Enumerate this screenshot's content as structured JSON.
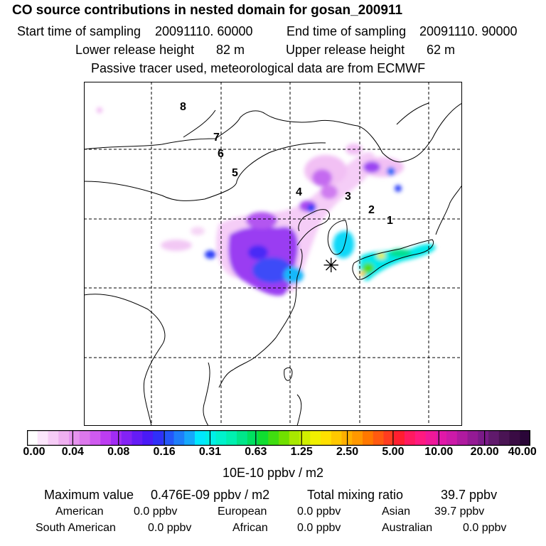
{
  "header": {
    "title": "CO  source contributions in nested domain for gosan_200911",
    "start_label": "Start time of sampling",
    "start_value": "20091110. 60000",
    "end_label": "End time of sampling",
    "end_value": "20091110. 90000",
    "lower_label": "Lower release height",
    "lower_value": "82 m",
    "upper_label": "Upper release height",
    "upper_value": "62 m",
    "subtitle": "Passive tracer used, meteorological data are from ECMWF"
  },
  "map": {
    "trajectory_labels": [
      "1",
      "2",
      "3",
      "4",
      "5",
      "6",
      "7",
      "8"
    ],
    "receptor_symbol": "✳",
    "grid_lines": "dashed"
  },
  "colorbar": {
    "ticks": [
      "0.00",
      "0.04",
      "0.08",
      "0.16",
      "0.31",
      "0.63",
      "1.25",
      "2.50",
      "5.00",
      "10.00",
      "20.00",
      "40.00"
    ],
    "colors": [
      "#ffffff",
      "#fbe6fb",
      "#f6ccf6",
      "#efb0f0",
      "#e693ee",
      "#dc78ec",
      "#cf5aef",
      "#bd3df2",
      "#a12cf4",
      "#8322f5",
      "#651cf6",
      "#4a1af7",
      "#2f30f8",
      "#2456f9",
      "#1e7efa",
      "#16a8fb",
      "#00e8ff",
      "#00f0e8",
      "#00f2cc",
      "#00f0b0",
      "#00e68a",
      "#00e060",
      "#10dd30",
      "#40dd10",
      "#70e000",
      "#a8e800",
      "#d0f000",
      "#f0f000",
      "#ffe000",
      "#ffc800",
      "#ffb000",
      "#ff9800",
      "#ff7800",
      "#ff5a10",
      "#ff3c20",
      "#ff1e30",
      "#ff1a60",
      "#ff1a80",
      "#f01898",
      "#e018a8",
      "#cc1aa8",
      "#b01aa0",
      "#941a94",
      "#7a1a88",
      "#601a6c",
      "#4a1454",
      "#3a0c44",
      "#2a0638"
    ],
    "units": "10E-10 ppbv / m2"
  },
  "summary": {
    "max_label": "Maximum value",
    "max_value": "0.476E-09 ppbv / m2",
    "total_label": "Total mixing ratio",
    "total_value": "39.7 ppbv",
    "regions": [
      {
        "name": "American",
        "value": "0.0 ppbv"
      },
      {
        "name": "European",
        "value": "0.0 ppbv"
      },
      {
        "name": "Asian",
        "value": "39.7 ppbv"
      },
      {
        "name": "South American",
        "value": "0.0 ppbv"
      },
      {
        "name": "African",
        "value": "0.0 ppbv"
      },
      {
        "name": "Australian",
        "value": "0.0 ppbv"
      }
    ]
  }
}
